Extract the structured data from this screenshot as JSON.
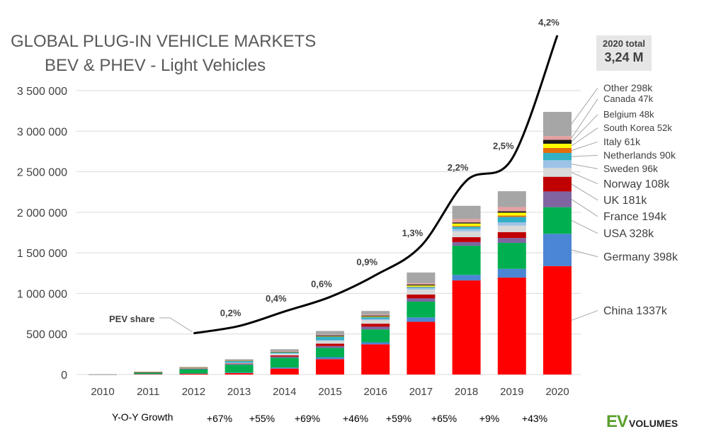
{
  "title_line1": "GLOBAL PLUG-IN VEHICLE MARKETS",
  "title_line2": "BEV & PHEV - Light Vehicles",
  "total_box": {
    "caption": "2020 total",
    "value": "3,24 M"
  },
  "yoy_label": "Y-O-Y Growth",
  "yoy": [
    "",
    "+67%",
    "+55%",
    "+69%",
    "+46%",
    "+59%",
    "+65%",
    "+9%",
    "+43%"
  ],
  "brand": {
    "ev": "EV",
    "volumes": "VOLUMES"
  },
  "chart_data": {
    "type": "bar",
    "stacked": true,
    "categories": [
      "2010",
      "2011",
      "2012",
      "2013",
      "2014",
      "2015",
      "2016",
      "2017",
      "2018",
      "2019",
      "2020"
    ],
    "ylim": [
      0,
      3500000
    ],
    "yticks": [
      0,
      500000,
      1000000,
      1500000,
      2000000,
      2500000,
      3000000,
      3500000
    ],
    "ytick_labels": [
      "0",
      "500 000",
      "1 000 000",
      "1 500 000",
      "2 000 000",
      "2 500 000",
      "3 000 000",
      "3 500 000"
    ],
    "grid": true,
    "series": [
      {
        "name": "China",
        "legend": "China  1337k",
        "color": "#ff0000",
        "values": [
          1000,
          5000,
          10000,
          17000,
          73000,
          190000,
          372000,
          650000,
          1160000,
          1195000,
          1337000
        ]
      },
      {
        "name": "Germany",
        "legend": "Germany  398k",
        "color": "#4a86d4",
        "values": [
          500,
          2000,
          3000,
          7000,
          13000,
          24000,
          25000,
          54000,
          68000,
          108000,
          398000
        ]
      },
      {
        "name": "USA",
        "legend": "USA 328k",
        "color": "#00b050",
        "values": [
          1000,
          18000,
          53000,
          97000,
          120000,
          115000,
          160000,
          195000,
          360000,
          320000,
          328000
        ]
      },
      {
        "name": "France",
        "legend": "France  194k",
        "color": "#8064a2",
        "values": [
          100,
          2000,
          5000,
          10000,
          15000,
          23000,
          33000,
          40000,
          45000,
          60000,
          194000
        ]
      },
      {
        "name": "UK",
        "legend": "UK  181k",
        "color": "#c00000",
        "values": [
          200,
          1000,
          2000,
          4000,
          15000,
          29000,
          37000,
          47000,
          60000,
          73000,
          181000
        ]
      },
      {
        "name": "Norway",
        "legend": "Norway  108k",
        "color": "#d9d9d9",
        "values": [
          400,
          2000,
          4000,
          8000,
          20000,
          34000,
          45000,
          62000,
          72000,
          79000,
          108000
        ]
      },
      {
        "name": "Sweden",
        "legend": "Sweden  96k",
        "color": "#9dc3e6",
        "values": [
          0,
          200,
          1000,
          2000,
          4000,
          9000,
          13000,
          20000,
          29000,
          41000,
          96000
        ]
      },
      {
        "name": "Netherlands",
        "legend": "Netherlands  90k",
        "color": "#31b0c6",
        "values": [
          200,
          1000,
          5000,
          23000,
          15000,
          43000,
          24000,
          11000,
          28000,
          67000,
          90000
        ]
      },
      {
        "name": "Italy",
        "legend": "Italy  61k",
        "color": "#e46c0a",
        "values": [
          0,
          300,
          500,
          1000,
          1500,
          2000,
          2500,
          5000,
          10000,
          17000,
          61000
        ]
      },
      {
        "name": "South Korea",
        "legend": "South Korea 52k",
        "color": "#ffff00",
        "values": [
          0,
          300,
          500,
          1000,
          1000,
          3000,
          6000,
          14000,
          30000,
          35000,
          52000
        ]
      },
      {
        "name": "Belgium",
        "legend": "Belgium 48k",
        "color": "#1a1a1a",
        "values": [
          0,
          500,
          1000,
          2000,
          2500,
          10000,
          10000,
          12000,
          13000,
          17000,
          48000
        ]
      },
      {
        "name": "Canada",
        "legend": "Canada 47k",
        "color": "#e6a0a0",
        "values": [
          0,
          500,
          1000,
          1500,
          4000,
          7000,
          12000,
          17000,
          42000,
          53000,
          47000
        ]
      },
      {
        "name": "Other",
        "legend": "Other 298k",
        "color": "#a6a6a6",
        "values": [
          1000,
          3000,
          8000,
          15000,
          28000,
          48000,
          44000,
          131000,
          163000,
          195000,
          298000
        ]
      }
    ],
    "share_line": {
      "name": "PEV share",
      "label": "PEV share",
      "categories": [
        "2012",
        "2013",
        "2014",
        "2015",
        "2016",
        "2017",
        "2018",
        "2019",
        "2020"
      ],
      "values": [
        0.1,
        0.2,
        0.4,
        0.6,
        0.9,
        1.3,
        2.2,
        2.5,
        4.2
      ],
      "labels": [
        "",
        "0,2%",
        "0,4%",
        "0,6%",
        "0,9%",
        "1,3%",
        "2,2%",
        "2,5%",
        "4,2%"
      ],
      "color": "#000000"
    }
  }
}
